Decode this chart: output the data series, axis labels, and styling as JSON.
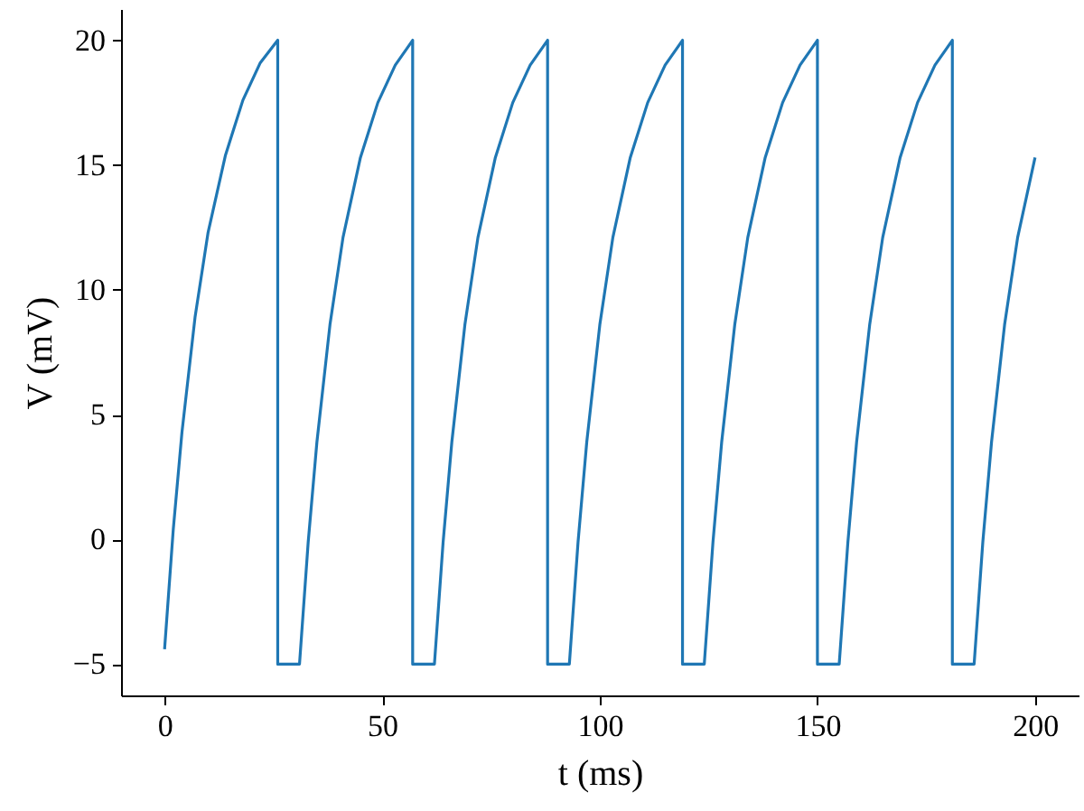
{
  "chart_data": {
    "type": "line",
    "xlabel": "t (ms)",
    "ylabel": "V (mV)",
    "xlim": [
      -10,
      210
    ],
    "ylim": [
      -6.25,
      21.25
    ],
    "xticks": [
      0,
      50,
      100,
      150,
      200
    ],
    "yticks": [
      -5,
      0,
      5,
      10,
      15,
      20
    ],
    "grid": false,
    "marker": "none",
    "line_style": "solid",
    "x": [
      0,
      2,
      4,
      7,
      10,
      14,
      18,
      22,
      26,
      26,
      31,
      33,
      35,
      38,
      41,
      45,
      49,
      53,
      57,
      57,
      62,
      64,
      66,
      69,
      72,
      76,
      80,
      84,
      88,
      88,
      93,
      95,
      97,
      100,
      103,
      107,
      111,
      115,
      119,
      119,
      124,
      126,
      128,
      131,
      134,
      138,
      142,
      146,
      150,
      150,
      155,
      157,
      159,
      162,
      165,
      169,
      173,
      177,
      181,
      181,
      186,
      188,
      190,
      193,
      196,
      200
    ],
    "series": [
      {
        "color": "#1f77b4",
        "values": [
          -4.4,
          0.4,
          4.3,
          8.9,
          12.3,
          15.4,
          17.6,
          19.1,
          20,
          -5,
          -5,
          -0.1,
          3.9,
          8.6,
          12.1,
          15.3,
          17.5,
          19.0,
          20,
          -5,
          -5,
          -0.1,
          3.9,
          8.6,
          12.1,
          15.3,
          17.5,
          19.0,
          20,
          -5,
          -5,
          -0.1,
          3.9,
          8.6,
          12.1,
          15.3,
          17.5,
          19.0,
          20,
          -5,
          -5,
          -0.1,
          3.9,
          8.6,
          12.1,
          15.3,
          17.5,
          19.0,
          20,
          -5,
          -5,
          -0.1,
          3.9,
          8.6,
          12.1,
          15.3,
          17.5,
          19.0,
          20,
          -5,
          -5,
          -0.1,
          3.9,
          8.6,
          12.1,
          15.3
        ]
      }
    ]
  }
}
